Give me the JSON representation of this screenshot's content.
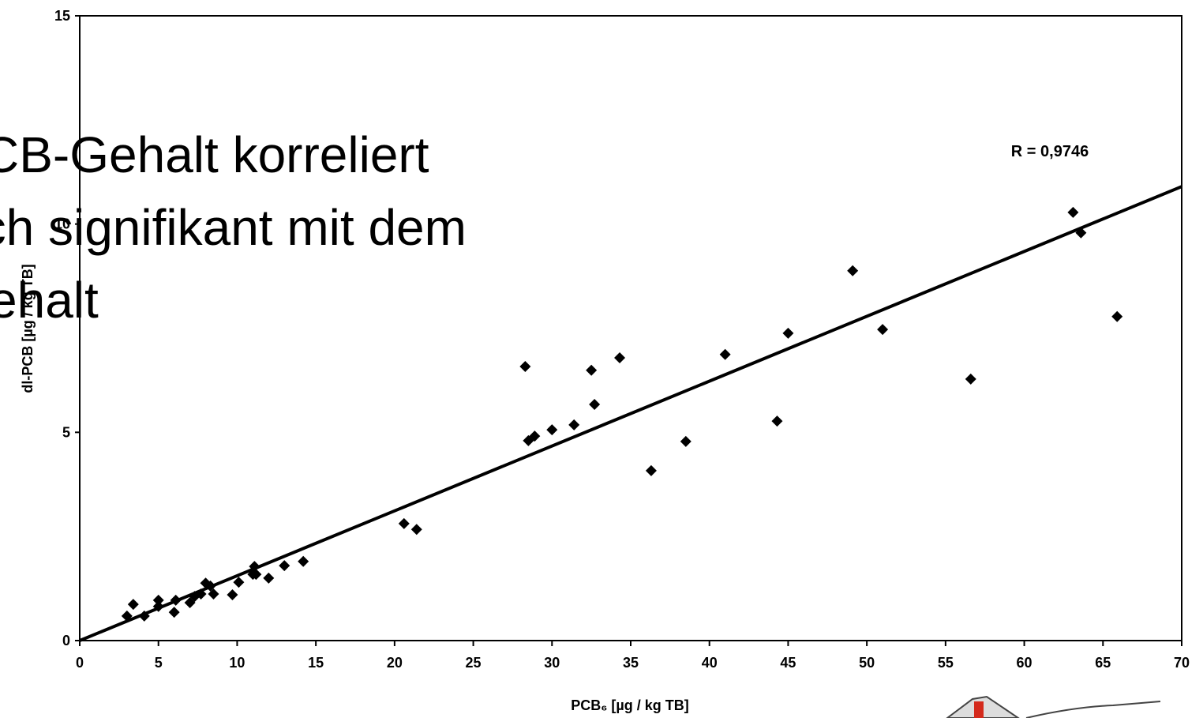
{
  "slide_text": [
    "CB-Gehalt korreliert",
    "och signifikant mit dem",
    "ehalt"
  ],
  "chart_data": {
    "type": "scatter",
    "xlabel": "PCB₆  [µg / kg TB]",
    "ylabel": "dl-PCB  [µg / kg TB]",
    "annotation": "R = 0,9746",
    "xlim": [
      0,
      70
    ],
    "ylim": [
      0,
      15
    ],
    "xticks": [
      0,
      5,
      10,
      15,
      20,
      25,
      30,
      35,
      40,
      45,
      50,
      55,
      60,
      65,
      70
    ],
    "yticks": [
      0,
      5,
      10,
      15
    ],
    "color": "#000000",
    "x": [
      3.0,
      3.4,
      4.1,
      5.0,
      5.0,
      6.0,
      6.1,
      7.0,
      7.3,
      7.7,
      8.0,
      8.3,
      8.5,
      9.7,
      10.1,
      11.0,
      11.1,
      11.2,
      12.0,
      13.0,
      14.2,
      20.6,
      21.4,
      28.3,
      28.5,
      28.9,
      30.0,
      31.4,
      32.5,
      32.7,
      34.3,
      36.3,
      38.5,
      41.0,
      44.3,
      45.0,
      49.1,
      51.0,
      56.6,
      63.1,
      63.6,
      65.9
    ],
    "values": [
      0.59,
      0.87,
      0.59,
      0.97,
      0.82,
      0.68,
      0.97,
      0.91,
      1.06,
      1.12,
      1.38,
      1.31,
      1.12,
      1.1,
      1.4,
      1.59,
      1.78,
      1.59,
      1.5,
      1.8,
      1.9,
      2.81,
      2.67,
      6.58,
      4.8,
      4.91,
      5.06,
      5.18,
      6.49,
      5.67,
      6.79,
      4.08,
      4.78,
      6.87,
      5.27,
      7.38,
      8.88,
      7.47,
      6.28,
      10.28,
      9.79,
      7.78
    ],
    "trendline": {
      "x": [
        0,
        70
      ],
      "y": [
        0,
        10.9
      ]
    }
  }
}
